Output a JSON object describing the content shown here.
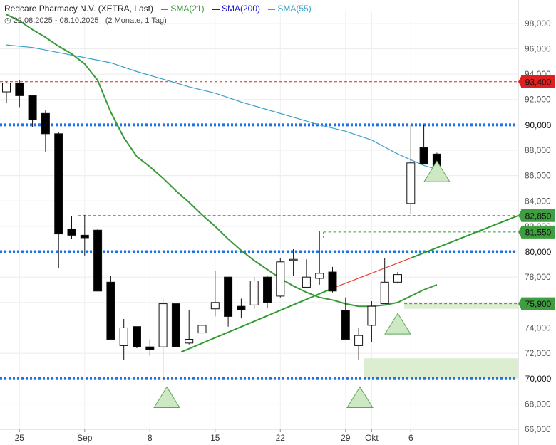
{
  "header": {
    "title": "Redcare Pharmacy N.V. (XETRA, Last)",
    "range": "22.08.2025 - 08.10.2025",
    "period": "(2 Monate, 1 Tag)",
    "sma21_label": "SMA(21)",
    "sma200_label": "SMA(200)",
    "sma55_label": "SMA(55)"
  },
  "colors": {
    "sma21": "#3a9a3a",
    "sma200": "#1a1acc",
    "sma55": "#3aa0c8",
    "level_blue": "#1e73e8",
    "marker_red": "#e02020",
    "marker_green": "#2f9a2f",
    "trend_green": "#2f9a2f",
    "trend_red": "#e84030",
    "zone_fill": "#d8ebcc"
  },
  "chart_data": {
    "type": "candlestick",
    "ylim": [
      66000,
      99000
    ],
    "y_ticks": [
      "66,000",
      "68,000",
      "70,000",
      "72,000",
      "74,000",
      "76,000",
      "78,000",
      "80,000",
      "82,000",
      "84,000",
      "86,000",
      "88,000",
      "90,000",
      "92,000",
      "94,000",
      "96,000",
      "98,000"
    ],
    "x_ticks": [
      {
        "label": "25",
        "i": 1
      },
      {
        "label": "Sep",
        "i": 6
      },
      {
        "label": "8",
        "i": 11
      },
      {
        "label": "15",
        "i": 16
      },
      {
        "label": "22",
        "i": 21
      },
      {
        "label": "29",
        "i": 26
      },
      {
        "label": "Okt",
        "i": 28
      },
      {
        "label": "6",
        "i": 31
      }
    ],
    "candles": [
      {
        "o": 92600,
        "h": 93400,
        "l": 91700,
        "c": 93300
      },
      {
        "o": 93300,
        "h": 93500,
        "l": 91400,
        "c": 92300
      },
      {
        "o": 92300,
        "h": 92300,
        "l": 89800,
        "c": 90400
      },
      {
        "o": 90900,
        "h": 91200,
        "l": 87900,
        "c": 89300
      },
      {
        "o": 89300,
        "h": 89400,
        "l": 78700,
        "c": 81400
      },
      {
        "o": 81800,
        "h": 82800,
        "l": 81000,
        "c": 81300
      },
      {
        "o": 81300,
        "h": 82900,
        "l": 79700,
        "c": 81100
      },
      {
        "o": 81700,
        "h": 81800,
        "l": 76900,
        "c": 76900
      },
      {
        "o": 77600,
        "h": 78100,
        "l": 73100,
        "c": 73100
      },
      {
        "o": 72600,
        "h": 74700,
        "l": 71500,
        "c": 74000
      },
      {
        "o": 74100,
        "h": 74100,
        "l": 72400,
        "c": 72500
      },
      {
        "o": 72500,
        "h": 73100,
        "l": 71800,
        "c": 72300
      },
      {
        "o": 72500,
        "h": 76300,
        "l": 69800,
        "c": 75900
      },
      {
        "o": 75900,
        "h": 75900,
        "l": 72500,
        "c": 72500
      },
      {
        "o": 72800,
        "h": 75400,
        "l": 72700,
        "c": 73100
      },
      {
        "o": 73600,
        "h": 76000,
        "l": 73300,
        "c": 74200
      },
      {
        "o": 75500,
        "h": 78500,
        "l": 74900,
        "c": 76000
      },
      {
        "o": 78000,
        "h": 78000,
        "l": 74100,
        "c": 74900
      },
      {
        "o": 75700,
        "h": 76300,
        "l": 74800,
        "c": 75400
      },
      {
        "o": 75800,
        "h": 78000,
        "l": 75500,
        "c": 77700
      },
      {
        "o": 78000,
        "h": 78100,
        "l": 75600,
        "c": 76000
      },
      {
        "o": 76500,
        "h": 79500,
        "l": 76400,
        "c": 79200
      },
      {
        "o": 79400,
        "h": 80200,
        "l": 78100,
        "c": 79400
      },
      {
        "o": 77200,
        "h": 79400,
        "l": 77200,
        "c": 78000
      },
      {
        "o": 77900,
        "h": 81600,
        "l": 77400,
        "c": 78300
      },
      {
        "o": 78400,
        "h": 78800,
        "l": 76800,
        "c": 76900
      },
      {
        "o": 75400,
        "h": 76400,
        "l": 73100,
        "c": 73100
      },
      {
        "o": 72600,
        "h": 74000,
        "l": 71500,
        "c": 73400
      },
      {
        "o": 74200,
        "h": 76100,
        "l": 72900,
        "c": 75700
      },
      {
        "o": 75900,
        "h": 79500,
        "l": 75900,
        "c": 77600
      },
      {
        "o": 77600,
        "h": 78400,
        "l": 77500,
        "c": 78200
      },
      {
        "o": 83800,
        "h": 90000,
        "l": 83000,
        "c": 87000
      },
      {
        "o": 88200,
        "h": 90000,
        "l": 86900,
        "c": 86900
      },
      {
        "o": 87700,
        "h": 87800,
        "l": 85700,
        "c": 85700
      }
    ],
    "sma21": [
      {
        "i": 0.0,
        "v": 98700
      },
      {
        "i": 1.0,
        "v": 98200
      },
      {
        "i": 2.0,
        "v": 97500
      },
      {
        "i": 3.0,
        "v": 96900
      },
      {
        "i": 4.0,
        "v": 96200
      },
      {
        "i": 5.0,
        "v": 95600
      },
      {
        "i": 6.0,
        "v": 94800
      },
      {
        "i": 7.0,
        "v": 93500
      },
      {
        "i": 8.0,
        "v": 91000
      },
      {
        "i": 9.0,
        "v": 89000
      },
      {
        "i": 10.0,
        "v": 87500
      },
      {
        "i": 11.0,
        "v": 86700
      },
      {
        "i": 12.0,
        "v": 85800
      },
      {
        "i": 13.0,
        "v": 84800
      },
      {
        "i": 14.0,
        "v": 83900
      },
      {
        "i": 15.0,
        "v": 82900
      },
      {
        "i": 16.0,
        "v": 82000
      },
      {
        "i": 17.0,
        "v": 81000
      },
      {
        "i": 18.0,
        "v": 80100
      },
      {
        "i": 19.0,
        "v": 79300
      },
      {
        "i": 20.0,
        "v": 78600
      },
      {
        "i": 21.0,
        "v": 77900
      },
      {
        "i": 22.0,
        "v": 77300
      },
      {
        "i": 23.0,
        "v": 76800
      },
      {
        "i": 24.0,
        "v": 76400
      },
      {
        "i": 25.0,
        "v": 76200
      },
      {
        "i": 26.0,
        "v": 75900
      },
      {
        "i": 27.0,
        "v": 75700
      },
      {
        "i": 28.0,
        "v": 75700
      },
      {
        "i": 29.0,
        "v": 75800
      },
      {
        "i": 30.0,
        "v": 76000
      },
      {
        "i": 31.0,
        "v": 76500
      },
      {
        "i": 32.0,
        "v": 77000
      },
      {
        "i": 33.0,
        "v": 77400
      }
    ],
    "sma55": [
      {
        "i": 0.0,
        "v": 96300
      },
      {
        "i": 2.0,
        "v": 96100
      },
      {
        "i": 4.0,
        "v": 95700
      },
      {
        "i": 6.0,
        "v": 95300
      },
      {
        "i": 8.0,
        "v": 94900
      },
      {
        "i": 10.0,
        "v": 94200
      },
      {
        "i": 12.0,
        "v": 93600
      },
      {
        "i": 14.0,
        "v": 93000
      },
      {
        "i": 16.0,
        "v": 92500
      },
      {
        "i": 18.0,
        "v": 91800
      },
      {
        "i": 20.0,
        "v": 91200
      },
      {
        "i": 22.0,
        "v": 90600
      },
      {
        "i": 24.0,
        "v": 90000
      },
      {
        "i": 26.0,
        "v": 89500
      },
      {
        "i": 28.0,
        "v": 88800
      },
      {
        "i": 30.0,
        "v": 87700
      },
      {
        "i": 32.0,
        "v": 86800
      },
      {
        "i": 33.0,
        "v": 86500
      }
    ],
    "levels": [
      {
        "value": 93400,
        "label": "93,400",
        "kind": "red_marker"
      },
      {
        "value": 90000,
        "label": "90,000",
        "kind": "blue_level"
      },
      {
        "value": 82850,
        "label": "82,850",
        "kind": "green_marker"
      },
      {
        "value": 81550,
        "label": "81,550",
        "kind": "green_marker"
      },
      {
        "value": 80000,
        "label": "80,000",
        "kind": "blue_level"
      },
      {
        "value": 75900,
        "label": "75,900",
        "kind": "green_marker"
      },
      {
        "value": 70000,
        "label": "70,000",
        "kind": "blue_level"
      }
    ],
    "trendlines": [
      {
        "i1": 13.4,
        "v1": 72100,
        "i2": 25.2,
        "v2": 77200,
        "color": "green"
      },
      {
        "i1": 25.2,
        "v1": 77200,
        "i2": 31.0,
        "v2": 79500,
        "color": "red"
      },
      {
        "i1": 31.0,
        "v1": 79500,
        "i2": 40.0,
        "v2": 82850,
        "color": "green"
      }
    ],
    "zones": [
      {
        "i1": 30.5,
        "i2": 40.0,
        "v1": 75900,
        "v2": 75500
      },
      {
        "i1": 27.4,
        "i2": 40.0,
        "v1": 71600,
        "v2": 70000
      }
    ],
    "arrows": [
      {
        "i": 12.3,
        "v": 68500
      },
      {
        "i": 27.1,
        "v": 68500
      },
      {
        "i": 30.0,
        "v": 74300
      },
      {
        "i": 33.0,
        "v": 86300
      }
    ]
  }
}
